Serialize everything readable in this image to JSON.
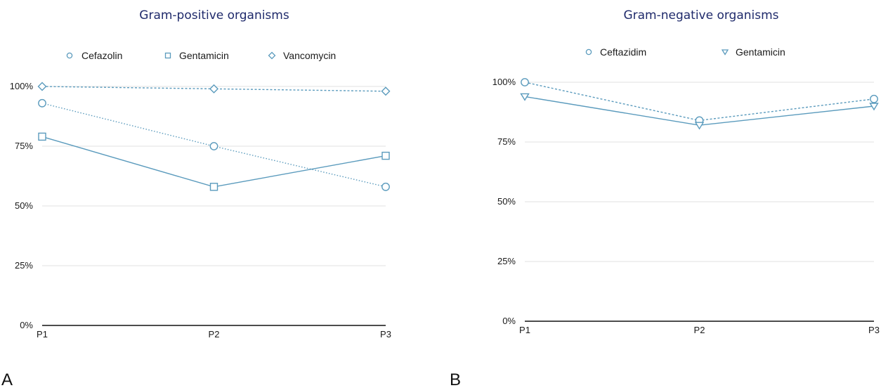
{
  "chart_data": [
    {
      "type": "line",
      "panel": "A",
      "title": "Gram-positive organisms",
      "categories": [
        "P1",
        "P2",
        "P3"
      ],
      "y_ticks": [
        "0%",
        "25%",
        "50%",
        "75%",
        "100%"
      ],
      "ylim": [
        0,
        100
      ],
      "grid": true,
      "legend_position": "top",
      "color": "#5b9bbd",
      "series": [
        {
          "name": "Cefazolin",
          "values": [
            93,
            75,
            58
          ],
          "marker": "circle",
          "dash": "dotted"
        },
        {
          "name": "Gentamicin",
          "values": [
            79,
            58,
            71
          ],
          "marker": "square",
          "dash": "solid"
        },
        {
          "name": "Vancomycin",
          "values": [
            100,
            99,
            98
          ],
          "marker": "diamond",
          "dash": "dashed"
        }
      ]
    },
    {
      "type": "line",
      "panel": "B",
      "title": "Gram-negative organisms",
      "categories": [
        "P1",
        "P2",
        "P3"
      ],
      "y_ticks": [
        "0%",
        "25%",
        "50%",
        "75%",
        "100%"
      ],
      "ylim": [
        0,
        100
      ],
      "grid": true,
      "legend_position": "top",
      "color": "#5b9bbd",
      "series": [
        {
          "name": "Ceftazidim",
          "values": [
            100,
            84,
            93
          ],
          "marker": "circle",
          "dash": "dashed"
        },
        {
          "name": "Gentamicin",
          "values": [
            94,
            82,
            90
          ],
          "marker": "triangle-down",
          "dash": "solid"
        }
      ]
    }
  ]
}
